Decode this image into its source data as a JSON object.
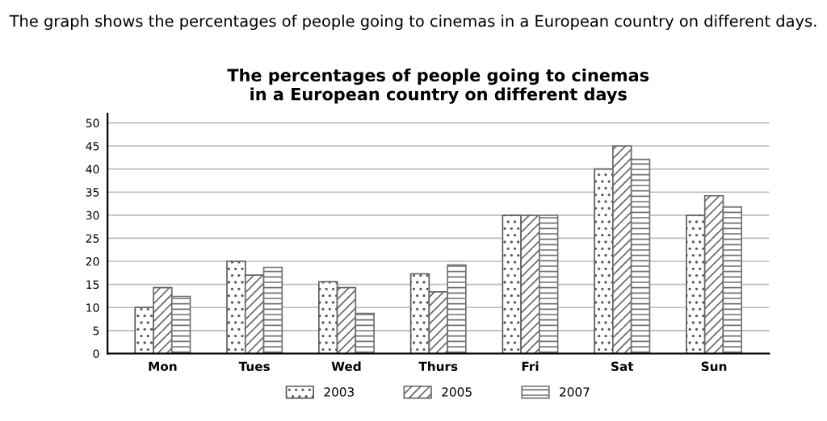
{
  "chart_data": {
    "type": "bar",
    "title": "The percentages of people going to cinemas\nin a European country on different days",
    "annotations": [
      "The graph shows the percentages of people going to cinemas in a European country on different days."
    ],
    "categories": [
      "Mon",
      "Tues",
      "Wed",
      "Thurs",
      "Fri",
      "Sat",
      "Sun"
    ],
    "series": [
      {
        "name": "2003",
        "color": "#5a5a5a",
        "values": [
          10,
          20,
          15.6,
          17.3,
          30,
          40,
          30
        ]
      },
      {
        "name": "2005",
        "color": "#666666",
        "values": [
          14.3,
          17,
          14.3,
          13.4,
          30,
          45,
          34.2
        ]
      },
      {
        "name": "2007",
        "color": "#707070",
        "values": [
          12.4,
          18.7,
          8.7,
          19.2,
          30,
          42.1,
          31.8
        ]
      }
    ],
    "ylim": [
      0,
      52
    ],
    "yticks": [
      0,
      5,
      10,
      15,
      20,
      25,
      30,
      35,
      40,
      45,
      50
    ],
    "grid": "y",
    "legend": "bottom"
  }
}
